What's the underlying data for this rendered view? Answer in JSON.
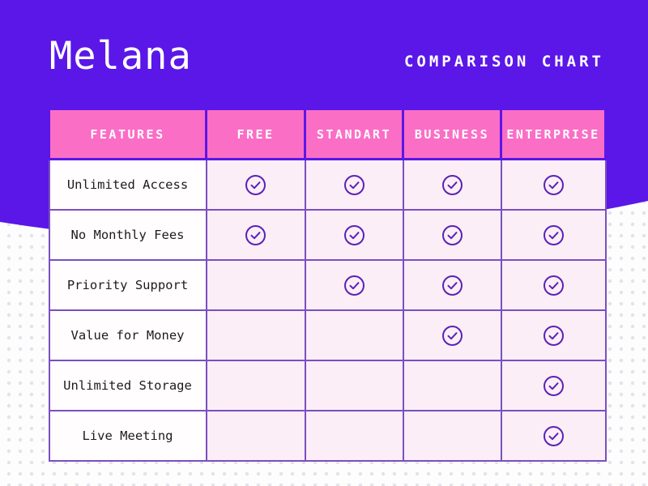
{
  "header": {
    "title": "Melana",
    "subtitle": "COMPARISON CHART"
  },
  "colors": {
    "background_purple": "#5a17e8",
    "header_pink": "#fb6ec6",
    "cell_pink": "#fbeef6",
    "border_purple": "#7a4fc0",
    "check_purple": "#5b21b6",
    "dot_gray": "#e5e2e9",
    "feature_text": "#1d1b1e",
    "header_text": "#ffffff"
  },
  "icons": {
    "check": "check-circle-icon"
  },
  "chart_data": {
    "type": "table",
    "title": "COMPARISON CHART",
    "columns": [
      "FEATURES",
      "FREE",
      "STANDART",
      "BUSINESS",
      "ENTERPRISE"
    ],
    "rows": [
      {
        "feature": "Unlimited Access",
        "checks": [
          true,
          true,
          true,
          true
        ]
      },
      {
        "feature": "No Monthly Fees",
        "checks": [
          true,
          true,
          true,
          true
        ]
      },
      {
        "feature": "Priority Support",
        "checks": [
          false,
          true,
          true,
          true
        ]
      },
      {
        "feature": "Value for Money",
        "checks": [
          false,
          false,
          true,
          true
        ]
      },
      {
        "feature": "Unlimited Storage",
        "checks": [
          false,
          false,
          false,
          true
        ]
      },
      {
        "feature": "Live Meeting",
        "checks": [
          false,
          false,
          false,
          true
        ]
      }
    ]
  }
}
